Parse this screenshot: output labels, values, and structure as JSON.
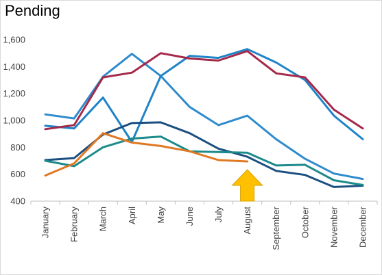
{
  "chart_data": {
    "type": "line",
    "title": "Pending",
    "xlabel": "",
    "ylabel": "",
    "ylim": [
      400,
      1600
    ],
    "yticks": [
      400,
      600,
      800,
      1000,
      1200,
      1400,
      1600
    ],
    "ytick_labels": [
      "400",
      "600",
      "800",
      "1,000",
      "1,200",
      "1,400",
      "1,600"
    ],
    "grid": false,
    "legend": "none",
    "categories": [
      "January",
      "February",
      "March",
      "April",
      "May",
      "June",
      "July",
      "August",
      "September",
      "October",
      "November",
      "December"
    ],
    "series": [
      {
        "color": "#2e8bce",
        "values": [
          1045,
          1015,
          1325,
          1495,
          1330,
          1100,
          965,
          1035,
          860,
          715,
          605,
          565
        ]
      },
      {
        "color": "#1f83c8",
        "values": [
          960,
          940,
          1170,
          840,
          1330,
          1480,
          1465,
          1530,
          1430,
          1300,
          1035,
          860
        ]
      },
      {
        "color": "#a52a4a",
        "values": [
          935,
          965,
          1320,
          1355,
          1500,
          1460,
          1445,
          1515,
          1350,
          1320,
          1080,
          940
        ]
      },
      {
        "color": "#1a4f80",
        "values": [
          705,
          720,
          895,
          980,
          985,
          905,
          790,
          730,
          625,
          595,
          505,
          515
        ]
      },
      {
        "color": "#1c8a8a",
        "values": [
          700,
          660,
          800,
          865,
          880,
          770,
          765,
          760,
          665,
          670,
          555,
          520
        ]
      },
      {
        "color": "#e07822",
        "values": [
          590,
          680,
          905,
          835,
          810,
          770,
          705,
          695,
          null,
          null,
          null,
          null
        ]
      }
    ],
    "annotations": [
      {
        "type": "arrow-up",
        "category": "August",
        "color": "#ffc000",
        "outline": "#d4a000"
      }
    ]
  }
}
